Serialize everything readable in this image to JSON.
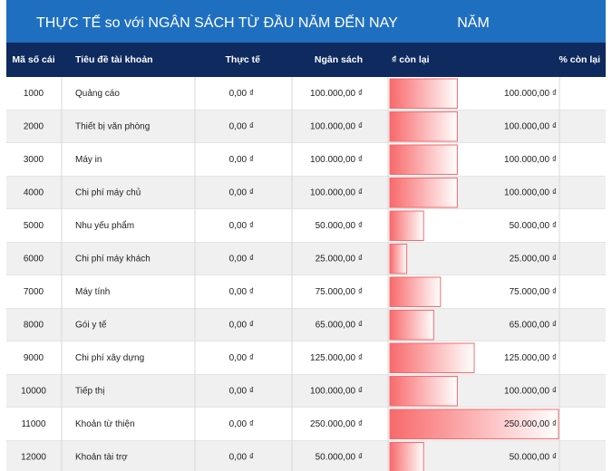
{
  "header": {
    "title": "THỰC TẾ so với NGÂN SÁCH TỪ ĐẦU NĂM ĐẾN NAY",
    "period": "NĂM"
  },
  "table": {
    "columns": [
      "Mã số cái",
      "Tiêu đề tài khoản",
      "Thực tế",
      "Ngân sách",
      "₫ còn lại",
      "% còn lại"
    ],
    "rows": [
      {
        "code": "1000",
        "account": "Quảng cáo",
        "actual": "0,00 ₫",
        "budget": "100.000,00 ₫",
        "remaining": {
          "value": 100000,
          "label": "100.000,00 ₫"
        }
      },
      {
        "code": "2000",
        "account": "Thiết bị văn phòng",
        "actual": "0,00 ₫",
        "budget": "100.000,00 ₫",
        "remaining": {
          "value": 100000,
          "label": "100.000,00 ₫"
        }
      },
      {
        "code": "3000",
        "account": "Máy in",
        "actual": "0,00 ₫",
        "budget": "100.000,00 ₫",
        "remaining": {
          "value": 100000,
          "label": "100.000,00 ₫"
        }
      },
      {
        "code": "4000",
        "account": "Chi phí máy chủ",
        "actual": "0,00 ₫",
        "budget": "100.000,00 ₫",
        "remaining": {
          "value": 100000,
          "label": "100.000,00 ₫"
        }
      },
      {
        "code": "5000",
        "account": "Nhu yếu phẩm",
        "actual": "0,00 ₫",
        "budget": "50.000,00 ₫",
        "remaining": {
          "value": 50000,
          "label": "50.000,00 ₫"
        }
      },
      {
        "code": "6000",
        "account": "Chi phí máy khách",
        "actual": "0,00 ₫",
        "budget": "25.000,00 ₫",
        "remaining": {
          "value": 25000,
          "label": "25.000,00 ₫"
        }
      },
      {
        "code": "7000",
        "account": "Máy tính",
        "actual": "0,00 ₫",
        "budget": "75.000,00 ₫",
        "remaining": {
          "value": 75000,
          "label": "75.000,00 ₫"
        }
      },
      {
        "code": "8000",
        "account": "Gói y tế",
        "actual": "0,00 ₫",
        "budget": "65.000,00 ₫",
        "remaining": {
          "value": 65000,
          "label": "65.000,00 ₫"
        }
      },
      {
        "code": "9000",
        "account": "Chi phí xây dựng",
        "actual": "0,00 ₫",
        "budget": "125.000,00 ₫",
        "remaining": {
          "value": 125000,
          "label": "125.000,00 ₫"
        }
      },
      {
        "code": "10000",
        "account": "Tiếp thị",
        "actual": "0,00 ₫",
        "budget": "100.000,00 ₫",
        "remaining": {
          "value": 100000,
          "label": "100.000,00 ₫"
        }
      },
      {
        "code": "11000",
        "account": "Khoản từ thiện",
        "actual": "0,00 ₫",
        "budget": "250.000,00 ₫",
        "remaining": {
          "value": 250000,
          "label": "250.000,00 ₫"
        }
      },
      {
        "code": "12000",
        "account": "Khoản tài trợ",
        "actual": "0,00 ₫",
        "budget": "50.000,00 ₫",
        "remaining": {
          "value": 50000,
          "label": "50.000,00 ₫"
        }
      }
    ]
  }
}
